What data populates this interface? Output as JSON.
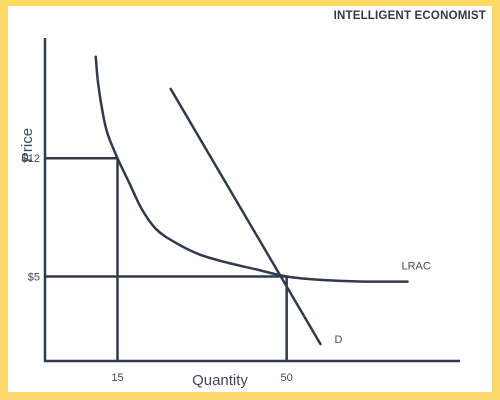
{
  "brand": {
    "text": "INTELLIGENT ECONOMIST"
  },
  "colors": {
    "frame": "#fdda6c",
    "ink": "#2f3b4a",
    "background": "#ffffff"
  },
  "chart_data": {
    "type": "line",
    "title": "",
    "xlabel": "Quantity",
    "ylabel": "Price",
    "xlim": [
      0,
      90
    ],
    "ylim": [
      0,
      20
    ],
    "grid": false,
    "x_ticks": [
      {
        "value": 15,
        "label": "15"
      },
      {
        "value": 50,
        "label": "50"
      }
    ],
    "y_ticks": [
      {
        "value": 12,
        "label": "$12"
      },
      {
        "value": 5,
        "label": "$5"
      }
    ],
    "series": [
      {
        "name": "LRAC",
        "points": [
          [
            10.5,
            18
          ],
          [
            11,
            16.4
          ],
          [
            12,
            14.6
          ],
          [
            13,
            13.4
          ],
          [
            15,
            12
          ],
          [
            17.5,
            10.5
          ],
          [
            20,
            9
          ],
          [
            23,
            7.8
          ],
          [
            27,
            7
          ],
          [
            32,
            6.3
          ],
          [
            38,
            5.8
          ],
          [
            44,
            5.4
          ],
          [
            50,
            5
          ],
          [
            57,
            4.8
          ],
          [
            66,
            4.7
          ],
          [
            75,
            4.7
          ]
        ]
      },
      {
        "name": "D",
        "points": [
          [
            26,
            16.1
          ],
          [
            57,
            1
          ]
        ]
      }
    ],
    "reference_lines": [
      {
        "from": [
          0,
          12
        ],
        "to": [
          15,
          12
        ]
      },
      {
        "from": [
          15,
          12
        ],
        "to": [
          15,
          0
        ]
      },
      {
        "from": [
          0,
          5
        ],
        "to": [
          50,
          5
        ]
      },
      {
        "from": [
          50,
          5
        ],
        "to": [
          50,
          0
        ]
      }
    ]
  }
}
